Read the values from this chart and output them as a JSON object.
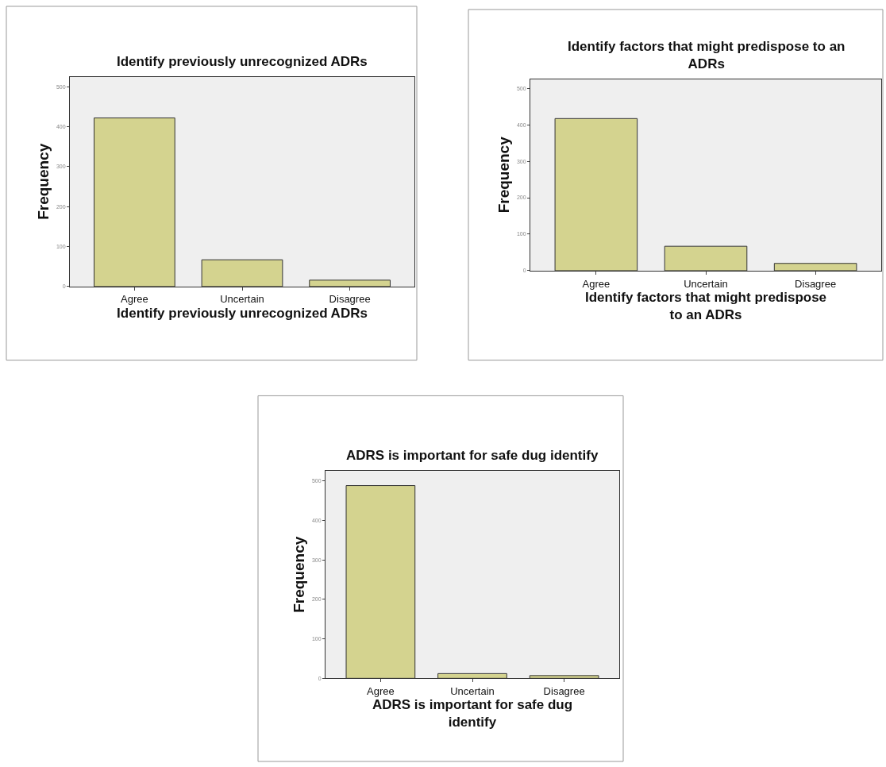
{
  "chart_data": [
    {
      "type": "bar",
      "title": "Identify previously unrecognized ADRs",
      "xlabel": "Identify previously unrecognized ADRs",
      "ylabel": "Frequency",
      "categories": [
        "Agree",
        "Uncertain",
        "Disagree"
      ],
      "values": [
        422,
        67,
        16
      ],
      "color": "#d4d38f",
      "ylim": [
        0,
        525
      ],
      "yticks": [
        0,
        100,
        200,
        300,
        400,
        500
      ],
      "grid": false
    },
    {
      "type": "bar",
      "title": "Identify factors that might predispose to an\nADRs",
      "xlabel": "Identify factors that might predispose\nto an ADRs",
      "ylabel": "Frequency",
      "categories": [
        "Agree",
        "Uncertain",
        "Disagree"
      ],
      "values": [
        417,
        67,
        20
      ],
      "color": "#d4d38f",
      "ylim": [
        0,
        525
      ],
      "yticks": [
        0,
        100,
        200,
        300,
        400,
        500
      ],
      "grid": false
    },
    {
      "type": "bar",
      "title": "ADRS is important for safe dug identify",
      "xlabel": "ADRS is important for safe dug\nidentify",
      "ylabel": "Frequency",
      "categories": [
        "Agree",
        "Uncertain",
        "Disagree"
      ],
      "values": [
        488,
        12,
        7
      ],
      "color": "#d4d38f",
      "ylim": [
        0,
        525
      ],
      "yticks": [
        0,
        100,
        200,
        300,
        400,
        500
      ],
      "grid": false
    }
  ]
}
